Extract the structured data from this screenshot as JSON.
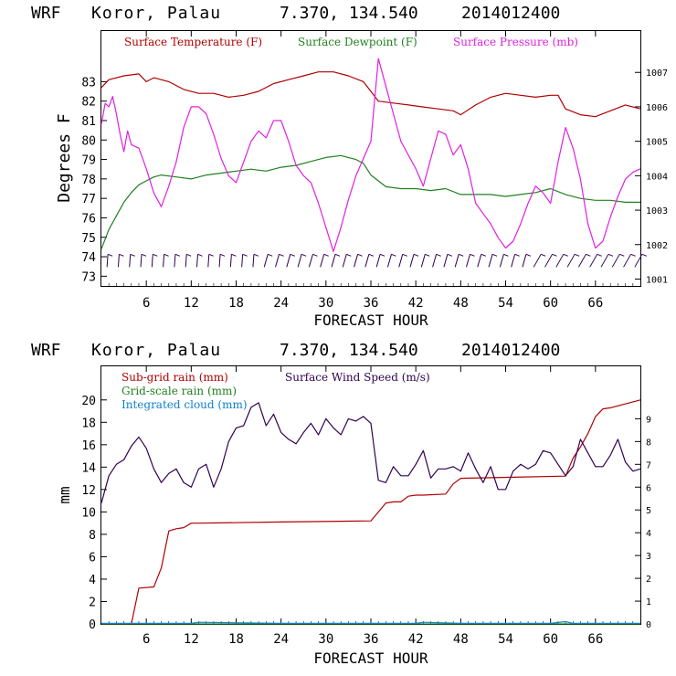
{
  "charts_header": [
    {
      "model": "WRF",
      "location": "Koror, Palau",
      "coords": "7.370, 134.540",
      "run": "2014012400"
    },
    {
      "model": "WRF",
      "location": "Koror, Palau",
      "coords": "7.370, 134.540",
      "run": "2014012400"
    }
  ],
  "chart_data": [
    {
      "type": "line",
      "title": "WRF  Koror, Palau   7.370, 134.540  2014012400",
      "xlabel": "FORECAST HOUR",
      "ylabel": "Degrees F",
      "y2label": "",
      "xlim": [
        0,
        72
      ],
      "ylim": [
        72.5,
        85.6
      ],
      "y2lim": [
        1000.8,
        1008.2
      ],
      "xticks": [
        6,
        12,
        18,
        24,
        30,
        36,
        42,
        48,
        54,
        60,
        66
      ],
      "xtick_labels": [
        "6",
        "12",
        "18",
        "24",
        "30",
        "36",
        "42",
        "48",
        "54",
        "60",
        "66"
      ],
      "yticks": [
        73,
        74,
        75,
        76,
        77,
        78,
        79,
        80,
        81,
        82,
        83
      ],
      "ytick_labels": [
        "73",
        "74",
        "75",
        "76",
        "77",
        "78",
        "79",
        "80",
        "81",
        "82",
        "83"
      ],
      "y2ticks": [
        1001,
        1002,
        1003,
        1004,
        1005,
        1006,
        1007
      ],
      "y2tick_labels": [
        "1001",
        "1002",
        "1003",
        "1004",
        "1005",
        "1006",
        "1007"
      ],
      "legend": [
        {
          "label": "Surface Temperature (F)",
          "color": "#b00000"
        },
        {
          "label": "Surface Dewpoint (F)",
          "color": "#208020"
        },
        {
          "label": "Surface Pressure (mb)",
          "color": "#e020e0"
        }
      ],
      "series": [
        {
          "name": "Surface Temperature (F)",
          "axis": "left",
          "color": "#b00000",
          "x": [
            0,
            1,
            3,
            5,
            6,
            7,
            9,
            11,
            13,
            15,
            17,
            19,
            21,
            23,
            25,
            27,
            29,
            31,
            33,
            35,
            36,
            37,
            39,
            41,
            43,
            45,
            47,
            48,
            50,
            52,
            54,
            56,
            58,
            60,
            61,
            62,
            64,
            66,
            68,
            70,
            72
          ],
          "values": [
            82.7,
            83.1,
            83.3,
            83.4,
            83.0,
            83.2,
            83.0,
            82.6,
            82.4,
            82.4,
            82.2,
            82.3,
            82.5,
            82.9,
            83.1,
            83.3,
            83.5,
            83.5,
            83.3,
            83.0,
            82.5,
            82.0,
            81.9,
            81.8,
            81.7,
            81.6,
            81.5,
            81.3,
            81.8,
            82.2,
            82.4,
            82.3,
            82.2,
            82.3,
            82.3,
            81.6,
            81.3,
            81.2,
            81.5,
            81.8,
            81.6
          ]
        },
        {
          "name": "Surface Dewpoint (F)",
          "axis": "left",
          "color": "#208020",
          "x": [
            0,
            1,
            2,
            3,
            4,
            5,
            6,
            7,
            8,
            10,
            12,
            14,
            16,
            18,
            20,
            22,
            24,
            26,
            28,
            30,
            32,
            34,
            35,
            36,
            37,
            38,
            40,
            42,
            44,
            46,
            48,
            50,
            52,
            54,
            56,
            58,
            60,
            62,
            64,
            66,
            68,
            70,
            72
          ],
          "values": [
            74.4,
            75.4,
            76.1,
            76.8,
            77.3,
            77.7,
            77.9,
            78.1,
            78.2,
            78.1,
            78.0,
            78.2,
            78.3,
            78.4,
            78.5,
            78.4,
            78.6,
            78.7,
            78.9,
            79.1,
            79.2,
            79.0,
            78.8,
            78.2,
            77.9,
            77.6,
            77.5,
            77.5,
            77.4,
            77.5,
            77.2,
            77.2,
            77.2,
            77.1,
            77.2,
            77.3,
            77.5,
            77.2,
            77.0,
            76.9,
            76.9,
            76.8,
            76.8
          ]
        },
        {
          "name": "Surface Pressure (mb)",
          "axis": "right",
          "color": "#e020e0",
          "x": [
            0,
            0.5,
            1,
            1.5,
            2,
            2.5,
            3,
            3.5,
            4,
            5,
            6,
            7,
            8,
            9,
            10,
            11,
            12,
            13,
            14,
            15,
            16,
            17,
            18,
            19,
            20,
            21,
            22,
            23,
            24,
            25,
            26,
            27,
            28,
            29,
            30,
            31,
            32,
            33,
            34,
            35,
            36,
            37,
            38,
            39,
            40,
            41,
            42,
            43,
            44,
            45,
            46,
            47,
            48,
            49,
            50,
            51,
            52,
            53,
            54,
            55,
            56,
            57,
            58,
            59,
            60,
            61,
            62,
            63,
            64,
            65,
            66,
            67,
            68,
            69,
            70,
            71,
            72
          ],
          "values": [
            1005.5,
            1006.1,
            1006.0,
            1006.3,
            1005.8,
            1005.2,
            1004.7,
            1005.3,
            1004.9,
            1004.8,
            1004.2,
            1003.5,
            1003.1,
            1003.7,
            1004.4,
            1005.4,
            1006.0,
            1006.0,
            1005.8,
            1005.2,
            1004.5,
            1004.0,
            1003.8,
            1004.4,
            1005.0,
            1005.3,
            1005.1,
            1005.6,
            1005.6,
            1005.0,
            1004.3,
            1004.0,
            1003.8,
            1003.2,
            1002.5,
            1001.8,
            1002.5,
            1003.3,
            1004.0,
            1004.5,
            1005.0,
            1007.4,
            1006.6,
            1005.8,
            1005.0,
            1004.6,
            1004.2,
            1003.7,
            1004.5,
            1005.3,
            1005.2,
            1004.6,
            1004.9,
            1004.2,
            1003.2,
            1002.9,
            1002.6,
            1002.2,
            1001.9,
            1002.1,
            1002.6,
            1003.2,
            1003.7,
            1003.5,
            1003.2,
            1004.4,
            1005.4,
            1004.8,
            1003.9,
            1002.6,
            1001.9,
            1002.1,
            1002.8,
            1003.4,
            1003.9,
            1004.1,
            1004.2
          ]
        }
      ],
      "wind_barbs": {
        "row_value": 73.8,
        "count": 48
      }
    },
    {
      "type": "line",
      "title": "WRF  Koror, Palau   7.370, 134.540  2014012400",
      "xlabel": "FORECAST HOUR",
      "ylabel": "mm",
      "xlim": [
        0,
        72
      ],
      "ylim": [
        0,
        23
      ],
      "y2lim": [
        0,
        11.3
      ],
      "xticks": [
        6,
        12,
        18,
        24,
        30,
        36,
        42,
        48,
        54,
        60,
        66
      ],
      "xtick_labels": [
        "6",
        "12",
        "18",
        "24",
        "30",
        "36",
        "42",
        "48",
        "54",
        "60",
        "66"
      ],
      "yticks": [
        0,
        2,
        4,
        6,
        8,
        10,
        12,
        14,
        16,
        18,
        20
      ],
      "ytick_labels": [
        "0",
        "2",
        "4",
        "6",
        "8",
        "10",
        "12",
        "14",
        "16",
        "18",
        "20"
      ],
      "y2ticks": [
        0,
        1,
        2,
        3,
        4,
        5,
        6,
        7,
        8,
        9
      ],
      "y2tick_labels": [
        "0",
        "1",
        "2",
        "3",
        "4",
        "5",
        "6",
        "7",
        "8",
        "9"
      ],
      "legend": [
        {
          "label": "Sub-grid rain (mm)",
          "color": "#b00000"
        },
        {
          "label": "Grid-scale rain (mm)",
          "color": "#208020"
        },
        {
          "label": "Integrated cloud (mm)",
          "color": "#1080d0"
        },
        {
          "label": "Surface Wind Speed (m/s)",
          "color": "#300050"
        }
      ],
      "series": [
        {
          "name": "Sub-grid rain (mm)",
          "axis": "left",
          "color": "#b00000",
          "x": [
            0,
            4,
            5,
            7,
            8,
            9,
            10,
            11,
            12,
            13,
            24,
            36,
            38,
            39,
            40,
            41,
            42,
            43,
            46,
            47,
            48,
            55,
            62,
            63,
            64,
            65,
            66,
            67,
            68,
            72
          ],
          "values": [
            0,
            0,
            3.2,
            3.3,
            5.0,
            8.3,
            8.5,
            8.6,
            9.0,
            9.0,
            9.1,
            9.2,
            10.8,
            10.9,
            10.9,
            11.4,
            11.5,
            11.5,
            11.6,
            12.5,
            13.0,
            13.1,
            13.2,
            14.8,
            15.8,
            17.0,
            18.5,
            19.2,
            19.3,
            20.0
          ]
        },
        {
          "name": "Grid-scale rain (mm)",
          "axis": "left",
          "color": "#208020",
          "x": [
            0,
            72
          ],
          "values": [
            0,
            0
          ]
        },
        {
          "name": "Integrated cloud (mm)",
          "axis": "left",
          "color": "#1080d0",
          "x": [
            0,
            12,
            13,
            24,
            30,
            36,
            42,
            43,
            48,
            60,
            62,
            63,
            64,
            72
          ],
          "values": [
            0.05,
            0.05,
            0.15,
            0.05,
            0.05,
            0.05,
            0.05,
            0.15,
            0.05,
            0.05,
            0.2,
            0.05,
            0.05,
            0.05
          ]
        },
        {
          "name": "Surface Wind Speed (m/s)",
          "axis": "right",
          "color": "#300050",
          "x": [
            0,
            1,
            2,
            3,
            4,
            5,
            6,
            7,
            8,
            9,
            10,
            11,
            12,
            13,
            14,
            15,
            16,
            17,
            18,
            19,
            20,
            21,
            22,
            23,
            24,
            25,
            26,
            27,
            28,
            29,
            30,
            31,
            32,
            33,
            34,
            35,
            36,
            37,
            38,
            39,
            40,
            41,
            42,
            43,
            44,
            45,
            46,
            47,
            48,
            49,
            50,
            51,
            52,
            53,
            54,
            55,
            56,
            57,
            58,
            59,
            60,
            61,
            62,
            63,
            64,
            65,
            66,
            67,
            68,
            69,
            70,
            71,
            72
          ],
          "values": [
            5.3,
            6.5,
            7.0,
            7.2,
            7.8,
            8.2,
            7.7,
            6.8,
            6.2,
            6.6,
            6.8,
            6.2,
            6.0,
            6.8,
            7.0,
            6.0,
            6.8,
            8.0,
            8.6,
            8.7,
            9.5,
            9.7,
            8.7,
            9.2,
            8.4,
            8.1,
            7.9,
            8.4,
            8.8,
            8.3,
            9.0,
            8.6,
            8.3,
            9.0,
            8.9,
            9.1,
            8.8,
            6.3,
            6.2,
            6.9,
            6.5,
            6.5,
            7.0,
            7.6,
            6.4,
            6.8,
            6.8,
            6.9,
            6.7,
            7.5,
            6.8,
            6.2,
            6.9,
            5.9,
            5.9,
            6.7,
            7.0,
            6.8,
            7.0,
            7.6,
            7.5,
            7.0,
            6.5,
            6.9,
            8.1,
            7.5,
            6.9,
            6.9,
            7.4,
            8.1,
            7.1,
            6.7,
            6.8
          ]
        }
      ]
    }
  ]
}
